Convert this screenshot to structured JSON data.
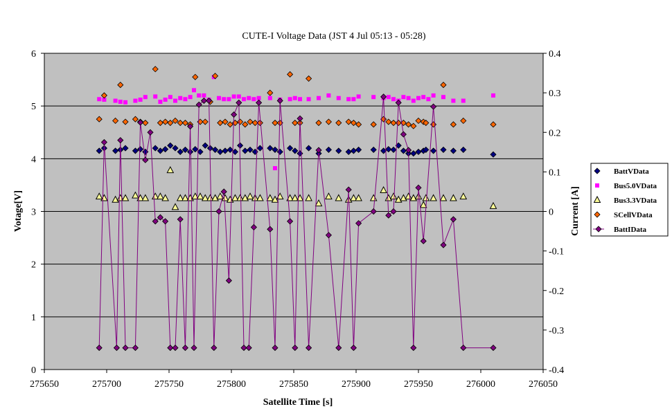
{
  "chart_data": {
    "type": "scatter",
    "title": "CUTE-I Voltage Data (JST 4 Jul 05:13 - 05:28)",
    "xlabel": "Satellite Time [s]",
    "ylabel": "Votage[V]",
    "y2label": "Current [A]",
    "xlim": [
      275650,
      276050
    ],
    "ylim": [
      0,
      6
    ],
    "y2lim": [
      -0.4,
      0.4
    ],
    "xticks": [
      275650,
      275700,
      275750,
      275800,
      275850,
      275900,
      275950,
      276000,
      276050
    ],
    "yticks": [
      0,
      1,
      2,
      3,
      4,
      5,
      6
    ],
    "y2ticks": [
      "0.4",
      "0.3",
      "0.2",
      "0.1",
      "0",
      "-0.1",
      "-0.2",
      "-0.3",
      "-0.4"
    ],
    "y2tick_values": [
      0.4,
      0.3,
      0.2,
      0.1,
      0,
      -0.1,
      -0.2,
      -0.3,
      -0.4
    ],
    "grid": "horizontal",
    "plot_background": "#c0c0c0",
    "legend_position": "right",
    "series": [
      {
        "name": "BattVData",
        "axis": "left",
        "marker": "diamond",
        "color": "#000080",
        "x": [
          275694,
          275698,
          275707,
          275711,
          275715,
          275723,
          275727,
          275731,
          275739,
          275743,
          275747,
          275751,
          275755,
          275759,
          275763,
          275767,
          275771,
          275775,
          275779,
          275783,
          275787,
          275791,
          275795,
          275799,
          275803,
          275807,
          275811,
          275815,
          275819,
          275823,
          275831,
          275835,
          275839,
          275847,
          275851,
          275855,
          275862,
          275870,
          275878,
          275886,
          275894,
          275898,
          275902,
          275914,
          275922,
          275926,
          275930,
          275934,
          275938,
          275942,
          275946,
          275950,
          275954,
          275956,
          275962,
          275970,
          275978,
          275986,
          276010
        ],
        "y": [
          4.15,
          4.2,
          4.15,
          4.17,
          4.2,
          4.15,
          4.18,
          4.13,
          4.2,
          4.15,
          4.18,
          4.25,
          4.2,
          4.13,
          4.17,
          4.13,
          4.18,
          4.13,
          4.25,
          4.2,
          4.17,
          4.13,
          4.15,
          4.17,
          4.13,
          4.25,
          4.15,
          4.17,
          4.13,
          4.2,
          4.2,
          4.17,
          4.13,
          4.2,
          4.15,
          4.1,
          4.2,
          4.1,
          4.17,
          4.15,
          4.13,
          4.15,
          4.17,
          4.17,
          4.15,
          4.18,
          4.17,
          4.25,
          4.15,
          4.1,
          4.1,
          4.13,
          4.15,
          4.17,
          4.15,
          4.17,
          4.15,
          4.17,
          4.08
        ]
      },
      {
        "name": "Bus5.0VData",
        "axis": "left",
        "marker": "square",
        "color": "#ff00ff",
        "x": [
          275694,
          275698,
          275707,
          275711,
          275715,
          275723,
          275727,
          275731,
          275739,
          275743,
          275747,
          275751,
          275755,
          275759,
          275763,
          275767,
          275770,
          275774,
          275778,
          275782,
          275786,
          275790,
          275794,
          275798,
          275802,
          275806,
          275810,
          275814,
          275818,
          275822,
          275831,
          275835,
          275839,
          275847,
          275851,
          275855,
          275862,
          275870,
          275878,
          275886,
          275894,
          275898,
          275902,
          275914,
          275922,
          275926,
          275930,
          275934,
          275938,
          275942,
          275946,
          275950,
          275954,
          275958,
          275962,
          275970,
          275978,
          275986,
          276010
        ],
        "y": [
          5.13,
          5.12,
          5.1,
          5.08,
          5.07,
          5.1,
          5.12,
          5.17,
          5.18,
          5.08,
          5.12,
          5.17,
          5.1,
          5.15,
          5.13,
          5.17,
          5.3,
          5.2,
          5.2,
          5.12,
          5.55,
          5.15,
          5.13,
          5.13,
          5.18,
          5.18,
          5.13,
          5.15,
          5.13,
          5.15,
          5.15,
          3.82,
          5.12,
          5.13,
          5.15,
          5.13,
          5.13,
          5.15,
          5.2,
          5.15,
          5.13,
          5.13,
          5.18,
          5.17,
          5.15,
          5.17,
          5.13,
          5.1,
          5.17,
          5.15,
          5.1,
          5.15,
          5.17,
          5.13,
          5.2,
          5.17,
          5.1,
          5.1,
          5.2
        ]
      },
      {
        "name": "Bus3.3VData",
        "axis": "left",
        "marker": "triangle",
        "color": "#ffff99",
        "x": [
          275694,
          275698,
          275707,
          275711,
          275715,
          275723,
          275727,
          275731,
          275739,
          275743,
          275747,
          275751,
          275755,
          275759,
          275763,
          275767,
          275771,
          275775,
          275779,
          275783,
          275787,
          275791,
          275795,
          275799,
          275803,
          275807,
          275811,
          275815,
          275819,
          275823,
          275831,
          275835,
          275839,
          275847,
          275851,
          275855,
          275862,
          275870,
          275878,
          275886,
          275894,
          275898,
          275902,
          275914,
          275922,
          275926,
          275930,
          275934,
          275938,
          275942,
          275946,
          275950,
          275954,
          275956,
          275962,
          275970,
          275978,
          275986,
          276010
        ],
        "y": [
          3.28,
          3.25,
          3.22,
          3.25,
          3.25,
          3.3,
          3.25,
          3.25,
          3.28,
          3.28,
          3.25,
          3.78,
          3.08,
          3.25,
          3.25,
          3.25,
          3.28,
          3.28,
          3.25,
          3.25,
          3.25,
          3.28,
          3.25,
          3.22,
          3.25,
          3.25,
          3.25,
          3.28,
          3.25,
          3.25,
          3.25,
          3.22,
          3.28,
          3.25,
          3.25,
          3.25,
          3.25,
          3.15,
          3.28,
          3.25,
          3.22,
          3.25,
          3.25,
          3.25,
          3.4,
          3.25,
          3.28,
          3.22,
          3.25,
          3.28,
          3.25,
          3.28,
          3.12,
          3.25,
          3.25,
          3.25,
          3.25,
          3.28,
          3.1
        ]
      },
      {
        "name": "SCellVData",
        "axis": "left",
        "marker": "diamond",
        "color": "#ff6600",
        "x": [
          275694,
          275698,
          275707,
          275711,
          275715,
          275723,
          275727,
          275731,
          275739,
          275743,
          275747,
          275751,
          275755,
          275759,
          275763,
          275767,
          275771,
          275775,
          275779,
          275783,
          275787,
          275791,
          275795,
          275799,
          275803,
          275807,
          275811,
          275815,
          275819,
          275823,
          275831,
          275835,
          275839,
          275847,
          275851,
          275855,
          275862,
          275870,
          275878,
          275886,
          275894,
          275898,
          275902,
          275914,
          275922,
          275926,
          275930,
          275934,
          275938,
          275942,
          275946,
          275950,
          275954,
          275956,
          275962,
          275970,
          275978,
          275986,
          276010
        ],
        "y": [
          4.75,
          5.2,
          4.72,
          5.4,
          4.7,
          4.75,
          4.7,
          4.68,
          5.7,
          4.68,
          4.7,
          4.68,
          4.72,
          4.68,
          4.68,
          4.65,
          5.55,
          4.7,
          4.7,
          5.08,
          5.57,
          4.68,
          4.7,
          4.65,
          4.68,
          4.7,
          4.65,
          4.7,
          4.68,
          4.68,
          5.25,
          4.68,
          4.68,
          5.6,
          4.68,
          4.68,
          5.52,
          4.68,
          4.7,
          4.68,
          4.7,
          4.68,
          4.65,
          4.65,
          4.75,
          4.7,
          4.68,
          4.68,
          4.68,
          4.65,
          4.62,
          4.72,
          4.7,
          4.68,
          4.65,
          5.4,
          4.65,
          4.72,
          4.65
        ]
      },
      {
        "name": "BattIData",
        "axis": "right",
        "marker": "diamond-line",
        "color": "#800080",
        "x": [
          275694,
          275698,
          275708,
          275711,
          275715,
          275723,
          275727,
          275731,
          275735,
          275739,
          275743,
          275747,
          275751,
          275755,
          275759,
          275763,
          275767,
          275770,
          275774,
          275778,
          275782,
          275786,
          275790,
          275794,
          275798,
          275802,
          275806,
          275810,
          275814,
          275818,
          275822,
          275831,
          275835,
          275839,
          275847,
          275851,
          275855,
          275862,
          275870,
          275878,
          275886,
          275894,
          275898,
          275902,
          275914,
          275922,
          275926,
          275930,
          275934,
          275938,
          275942,
          275946,
          275950,
          275954,
          275962,
          275970,
          275978,
          275986,
          276010
        ],
        "y": [
          -0.345,
          0.175,
          -0.345,
          0.18,
          -0.345,
          -0.345,
          0.225,
          0.13,
          0.2,
          -0.025,
          -0.015,
          -0.025,
          -0.345,
          -0.345,
          -0.02,
          -0.345,
          0.215,
          -0.345,
          0.27,
          0.28,
          0.28,
          -0.345,
          0,
          0.05,
          -0.175,
          0.245,
          0.275,
          -0.345,
          -0.345,
          -0.04,
          0.275,
          -0.045,
          -0.345,
          0.28,
          -0.025,
          -0.345,
          0.235,
          -0.345,
          0.155,
          -0.06,
          -0.345,
          0.055,
          -0.345,
          -0.03,
          0,
          0.29,
          -0.01,
          0,
          0.275,
          0.195,
          0.155,
          -0.345,
          0.06,
          -0.075,
          0.265,
          -0.085,
          -0.02,
          -0.345,
          -0.345
        ]
      }
    ]
  }
}
